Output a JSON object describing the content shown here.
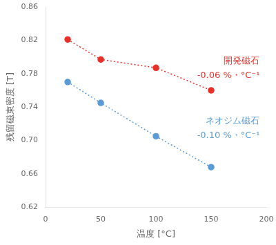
{
  "chart_data": {
    "type": "line",
    "x": [
      20,
      50,
      100,
      150
    ],
    "series": [
      {
        "name": "開発磁石",
        "color": "#e8302a",
        "values": [
          0.821,
          0.797,
          0.787,
          0.76
        ],
        "marker": "circle",
        "line_style": "dotted"
      },
      {
        "name": "ネオジム磁石",
        "color": "#5b9bd5",
        "values": [
          0.77,
          0.745,
          0.705,
          0.668
        ],
        "marker": "circle",
        "line_style": "dotted"
      }
    ],
    "annotations": [
      {
        "text": "開発磁石",
        "color": "#e8302a"
      },
      {
        "text": "-0.06 %・°C⁻¹",
        "color": "#e8302a"
      },
      {
        "text": "ネオジム磁石",
        "color": "#5b9bd5"
      },
      {
        "text": "-0.10 %・°C⁻¹",
        "color": "#5b9bd5"
      }
    ],
    "x_label": "温度 [°C]",
    "y_label": "残留磁束密度 [T]",
    "xlim": [
      0,
      200
    ],
    "ylim": [
      0.62,
      0.86
    ],
    "xticks": [
      0,
      50,
      100,
      150,
      200
    ],
    "yticks": [
      0.62,
      0.66,
      {
        "value": 0.7,
        "label": "0.70"
      },
      0.74,
      0.78,
      0.82,
      0.86
    ],
    "grid": false
  }
}
